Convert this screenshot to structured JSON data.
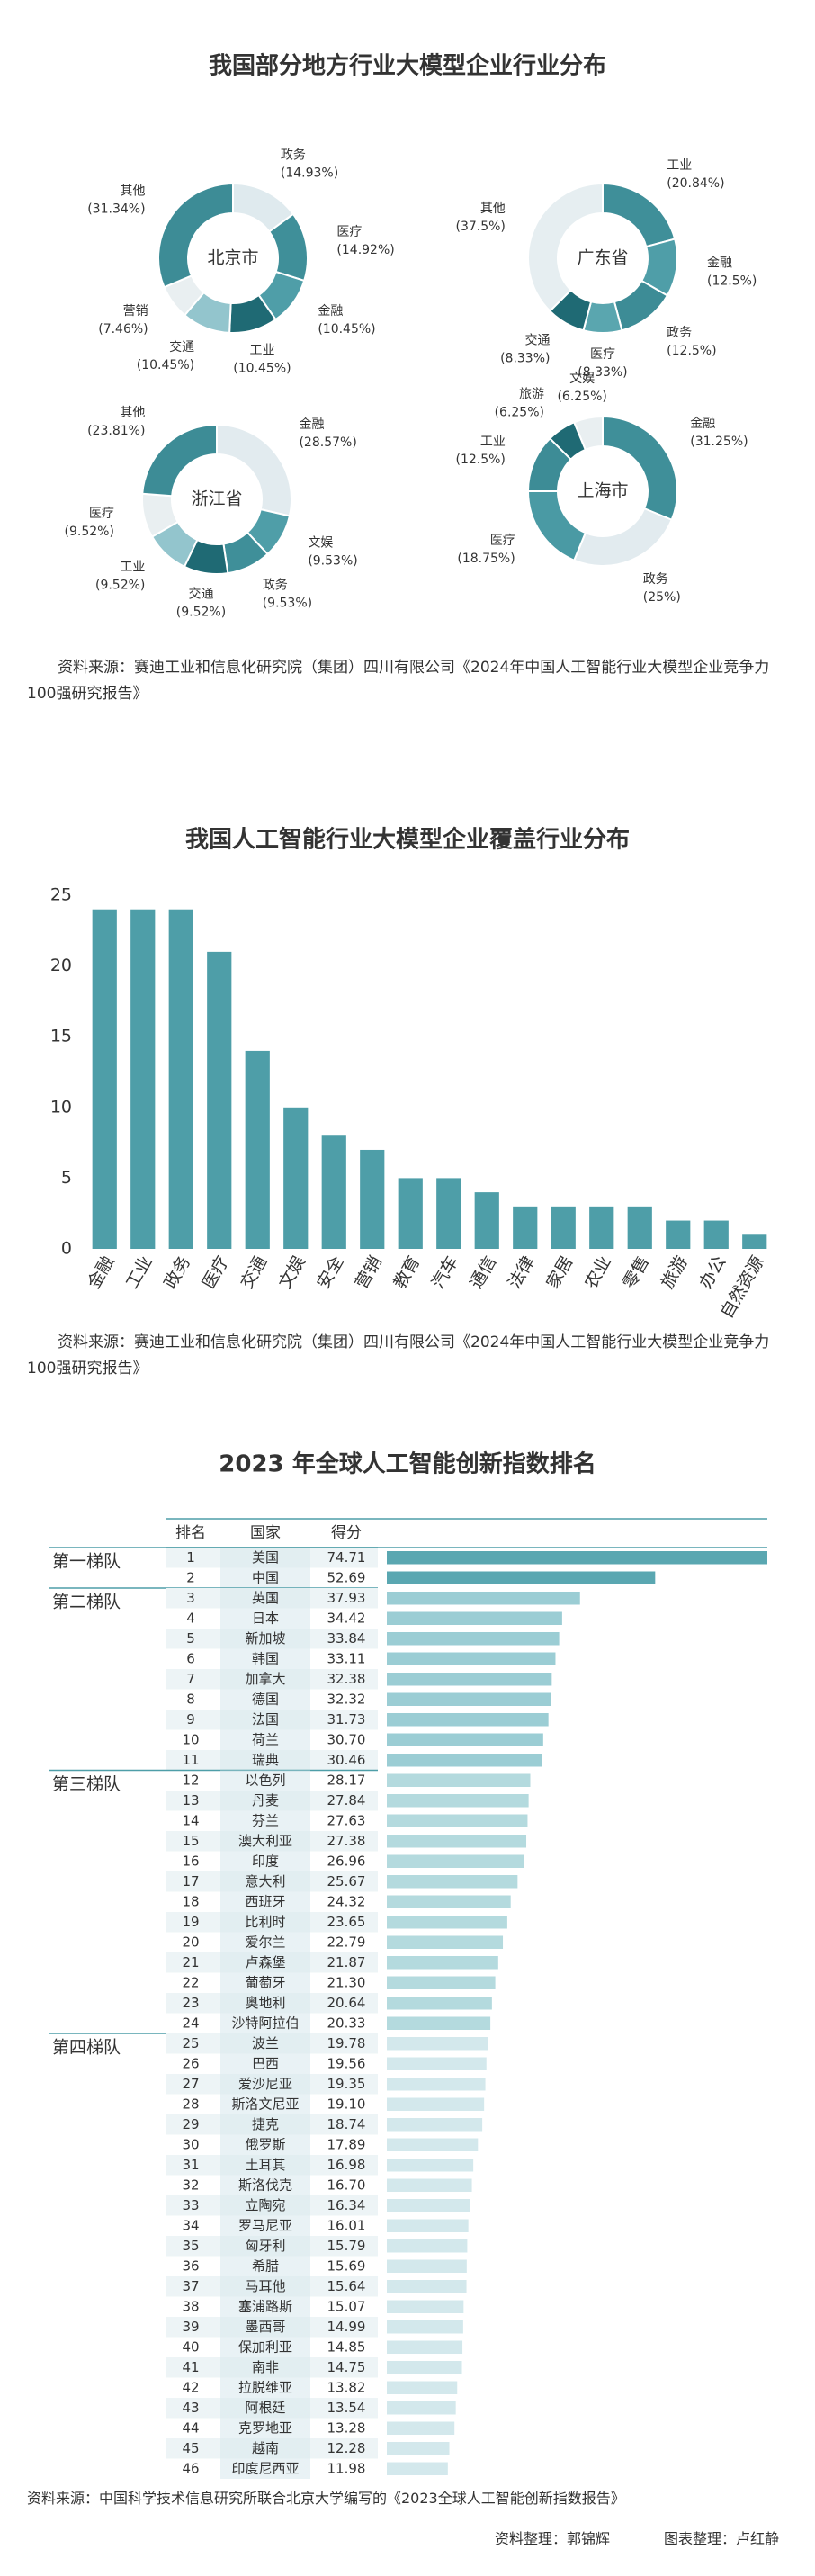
{
  "chart_data": [
    {
      "type": "donut",
      "title": "我国部分地方行业大模型企业行业分布",
      "source": "资料来源：赛迪工业和信息化研究院（集团）四川有限公司《2024年中国人工智能行业大模型企业竞争力100强研究报告》",
      "pies": [
        {
          "name": "北京市",
          "categories": [
            "政务",
            "医疗",
            "金融",
            "工业",
            "交通",
            "营销",
            "其他"
          ],
          "values": [
            14.93,
            14.92,
            10.45,
            10.45,
            10.45,
            7.46,
            31.34
          ],
          "value_labels": [
            "(14.93%)",
            "(14.92%)",
            "(10.45%)",
            "(10.45%)",
            "(10.45%)",
            "(7.46%)",
            "(31.34%)"
          ],
          "colors": [
            "#dfeaee",
            "#3f8f99",
            "#4f9ea8",
            "#1f6a74",
            "#93c5cd",
            "#e9eff1",
            "#3d8c96"
          ]
        },
        {
          "name": "广东省",
          "categories": [
            "工业",
            "金融",
            "政务",
            "医疗",
            "交通",
            "其他"
          ],
          "values": [
            20.84,
            12.5,
            12.5,
            8.33,
            8.33,
            37.5
          ],
          "value_labels": [
            "(20.84%)",
            "(12.5%)",
            "(12.5%)",
            "(8.33%)",
            "(8.33%)",
            "(37.5%)"
          ],
          "colors": [
            "#3f8f99",
            "#4f9ea8",
            "#3d8c96",
            "#5aa6af",
            "#1f6a74",
            "#e6eef1"
          ]
        },
        {
          "name": "浙江省",
          "categories": [
            "金融",
            "文娱",
            "政务",
            "交通",
            "工业",
            "医疗",
            "其他"
          ],
          "values": [
            28.57,
            9.53,
            9.53,
            9.52,
            9.52,
            9.52,
            23.81
          ],
          "value_labels": [
            "(28.57%)",
            "(9.53%)",
            "(9.53%)",
            "(9.52%)",
            "(9.52%)",
            "(9.52%)",
            "(23.81%)"
          ],
          "colors": [
            "#e2ebef",
            "#4f9ea8",
            "#3f8f99",
            "#1f6a74",
            "#93c5cd",
            "#e9eff1",
            "#3d8c96"
          ]
        },
        {
          "name": "上海市",
          "categories": [
            "金融",
            "政务",
            "医疗",
            "工业",
            "旅游",
            "文娱"
          ],
          "values": [
            31.25,
            25,
            18.75,
            12.5,
            6.25,
            6.25
          ],
          "value_labels": [
            "(31.25%)",
            "(25%)",
            "(18.75%)",
            "(12.5%)",
            "(6.25%)",
            "(6.25%)"
          ],
          "colors": [
            "#3f8f99",
            "#e2ebef",
            "#4a9aa4",
            "#3d8c96",
            "#1f6a74",
            "#e9eff1"
          ]
        }
      ]
    },
    {
      "type": "bar",
      "title": "我国人工智能行业大模型企业覆盖行业分布",
      "categories": [
        "金融",
        "工业",
        "政务",
        "医疗",
        "交通",
        "文娱",
        "安全",
        "营销",
        "教育",
        "汽车",
        "通信",
        "法律",
        "家居",
        "农业",
        "零售",
        "旅游",
        "办公",
        "自然资源"
      ],
      "values": [
        24,
        24,
        24,
        21,
        14,
        10,
        8,
        7,
        5,
        5,
        4,
        3,
        3,
        3,
        3,
        2,
        2,
        1
      ],
      "color": "#4e9ea8",
      "ylim": [
        0,
        25
      ],
      "yticks": [
        0,
        5,
        10,
        15,
        20,
        25
      ],
      "source": "资料来源：赛迪工业和信息化研究院（集团）四川有限公司《2024年中国人工智能行业大模型企业竞争力100强研究报告》"
    },
    {
      "type": "ranking",
      "title": "2023 年全球人工智能创新指数排名",
      "columns": [
        "排名",
        "国家",
        "得分"
      ],
      "tiers": [
        {
          "name": "第一梯队",
          "color": "#5aa7b1",
          "rows": [
            {
              "rank": 1,
              "country": "美国",
              "score": 74.71,
              "score_label": "74.71"
            },
            {
              "rank": 2,
              "country": "中国",
              "score": 52.69,
              "score_label": "52.69"
            }
          ]
        },
        {
          "name": "第二梯队",
          "color": "#9bcdd4",
          "rows": [
            {
              "rank": 3,
              "country": "英国",
              "score": 37.93,
              "score_label": "37.93"
            },
            {
              "rank": 4,
              "country": "日本",
              "score": 34.42,
              "score_label": "34.42"
            },
            {
              "rank": 5,
              "country": "新加坡",
              "score": 33.84,
              "score_label": "33.84"
            },
            {
              "rank": 6,
              "country": "韩国",
              "score": 33.11,
              "score_label": "33.11"
            },
            {
              "rank": 7,
              "country": "加拿大",
              "score": 32.38,
              "score_label": "32.38"
            },
            {
              "rank": 8,
              "country": "德国",
              "score": 32.32,
              "score_label": "32.32"
            },
            {
              "rank": 9,
              "country": "法国",
              "score": 31.73,
              "score_label": "31.73"
            },
            {
              "rank": 10,
              "country": "荷兰",
              "score": 30.7,
              "score_label": "30.70"
            },
            {
              "rank": 11,
              "country": "瑞典",
              "score": 30.46,
              "score_label": "30.46"
            }
          ]
        },
        {
          "name": "第三梯队",
          "color": "#b4dade",
          "rows": [
            {
              "rank": 12,
              "country": "以色列",
              "score": 28.17,
              "score_label": "28.17"
            },
            {
              "rank": 13,
              "country": "丹麦",
              "score": 27.84,
              "score_label": "27.84"
            },
            {
              "rank": 14,
              "country": "芬兰",
              "score": 27.63,
              "score_label": "27.63"
            },
            {
              "rank": 15,
              "country": "澳大利亚",
              "score": 27.38,
              "score_label": "27.38"
            },
            {
              "rank": 16,
              "country": "印度",
              "score": 26.96,
              "score_label": "26.96"
            },
            {
              "rank": 17,
              "country": "意大利",
              "score": 25.67,
              "score_label": "25.67"
            },
            {
              "rank": 18,
              "country": "西班牙",
              "score": 24.32,
              "score_label": "24.32"
            },
            {
              "rank": 19,
              "country": "比利时",
              "score": 23.65,
              "score_label": "23.65"
            },
            {
              "rank": 20,
              "country": "爱尔兰",
              "score": 22.79,
              "score_label": "22.79"
            },
            {
              "rank": 21,
              "country": "卢森堡",
              "score": 21.87,
              "score_label": "21.87"
            },
            {
              "rank": 22,
              "country": "葡萄牙",
              "score": 21.3,
              "score_label": "21.30"
            },
            {
              "rank": 23,
              "country": "奥地利",
              "score": 20.64,
              "score_label": "20.64"
            },
            {
              "rank": 24,
              "country": "沙特阿拉伯",
              "score": 20.33,
              "score_label": "20.33"
            }
          ]
        },
        {
          "name": "第四梯队",
          "color": "#d3e8ec",
          "rows": [
            {
              "rank": 25,
              "country": "波兰",
              "score": 19.78,
              "score_label": "19.78"
            },
            {
              "rank": 26,
              "country": "巴西",
              "score": 19.56,
              "score_label": "19.56"
            },
            {
              "rank": 27,
              "country": "爱沙尼亚",
              "score": 19.35,
              "score_label": "19.35"
            },
            {
              "rank": 28,
              "country": "斯洛文尼亚",
              "score": 19.1,
              "score_label": "19.10"
            },
            {
              "rank": 29,
              "country": "捷克",
              "score": 18.74,
              "score_label": "18.74"
            },
            {
              "rank": 30,
              "country": "俄罗斯",
              "score": 17.89,
              "score_label": "17.89"
            },
            {
              "rank": 31,
              "country": "土耳其",
              "score": 16.98,
              "score_label": "16.98"
            },
            {
              "rank": 32,
              "country": "斯洛伐克",
              "score": 16.7,
              "score_label": "16.70"
            },
            {
              "rank": 33,
              "country": "立陶宛",
              "score": 16.34,
              "score_label": "16.34"
            },
            {
              "rank": 34,
              "country": "罗马尼亚",
              "score": 16.01,
              "score_label": "16.01"
            },
            {
              "rank": 35,
              "country": "匈牙利",
              "score": 15.79,
              "score_label": "15.79"
            },
            {
              "rank": 36,
              "country": "希腊",
              "score": 15.69,
              "score_label": "15.69"
            },
            {
              "rank": 37,
              "country": "马耳他",
              "score": 15.64,
              "score_label": "15.64"
            },
            {
              "rank": 38,
              "country": "塞浦路斯",
              "score": 15.07,
              "score_label": "15.07"
            },
            {
              "rank": 39,
              "country": "墨西哥",
              "score": 14.99,
              "score_label": "14.99"
            },
            {
              "rank": 40,
              "country": "保加利亚",
              "score": 14.85,
              "score_label": "14.85"
            },
            {
              "rank": 41,
              "country": "南非",
              "score": 14.75,
              "score_label": "14.75"
            },
            {
              "rank": 42,
              "country": "拉脱维亚",
              "score": 13.82,
              "score_label": "13.82"
            },
            {
              "rank": 43,
              "country": "阿根廷",
              "score": 13.54,
              "score_label": "13.54"
            },
            {
              "rank": 44,
              "country": "克罗地亚",
              "score": 13.28,
              "score_label": "13.28"
            },
            {
              "rank": 45,
              "country": "越南",
              "score": 12.28,
              "score_label": "12.28"
            },
            {
              "rank": 46,
              "country": "印度尼西亚",
              "score": 11.98,
              "score_label": "11.98"
            }
          ]
        }
      ],
      "source": "资料来源：中国科学技术信息研究所联合北京大学编写的《2023全球人工智能创新指数报告》",
      "credits": [
        "资料整理：郭锦辉",
        "图表整理：卢红静"
      ]
    }
  ]
}
